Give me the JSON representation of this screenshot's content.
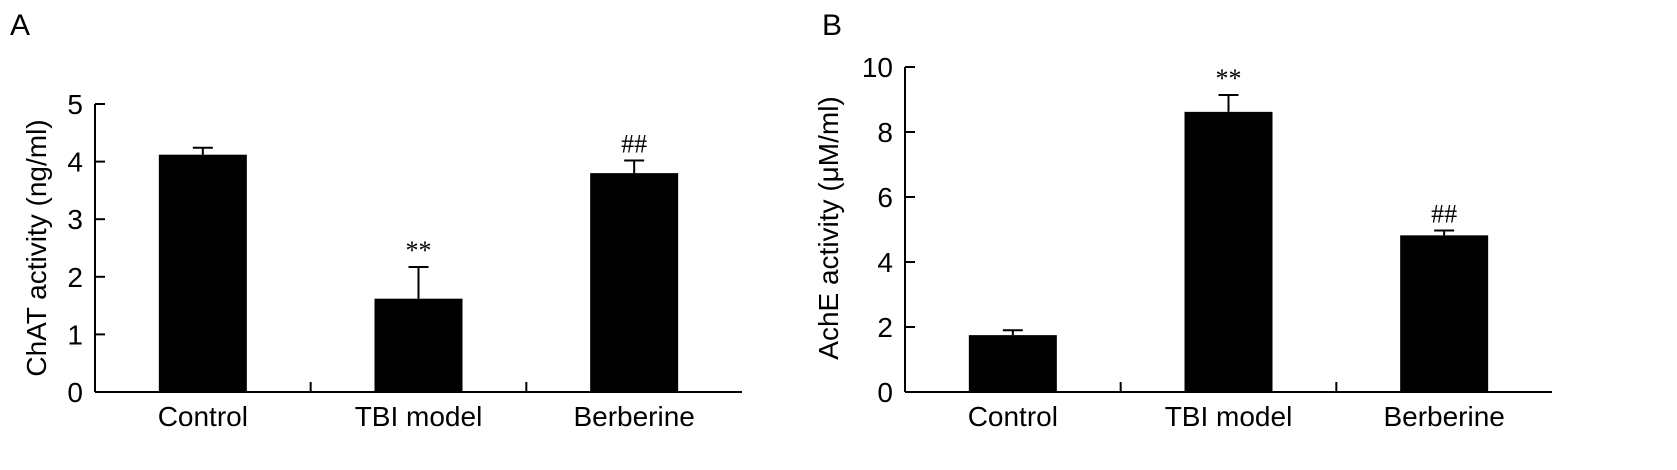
{
  "chart_data": [
    {
      "panel": "A",
      "type": "bar",
      "title": "",
      "xlabel": "",
      "ylabel": "ChAT activity (ng/ml)",
      "ylim": [
        0,
        5
      ],
      "yticks": [
        "0",
        "1",
        "2",
        "3",
        "4",
        "5"
      ],
      "categories": [
        "Control",
        "TBI model",
        "Berberine"
      ],
      "values": [
        4.12,
        1.62,
        3.8
      ],
      "errors": [
        0.12,
        0.55,
        0.22
      ],
      "annotations": [
        "",
        "**",
        "##"
      ],
      "grid": false,
      "bar_color": "#000000"
    },
    {
      "panel": "B",
      "type": "bar",
      "title": "",
      "xlabel": "",
      "ylabel": "AchE activity (μM/ml)",
      "ylim": [
        0,
        10
      ],
      "yticks": [
        "0",
        "2",
        "4",
        "6",
        "8",
        "10"
      ],
      "categories": [
        "Control",
        "TBI model",
        "Berberine"
      ],
      "values": [
        1.75,
        8.62,
        4.82
      ],
      "errors": [
        0.15,
        0.52,
        0.15
      ],
      "annotations": [
        "",
        "**",
        "##"
      ],
      "grid": false,
      "bar_color": "#000000"
    }
  ]
}
